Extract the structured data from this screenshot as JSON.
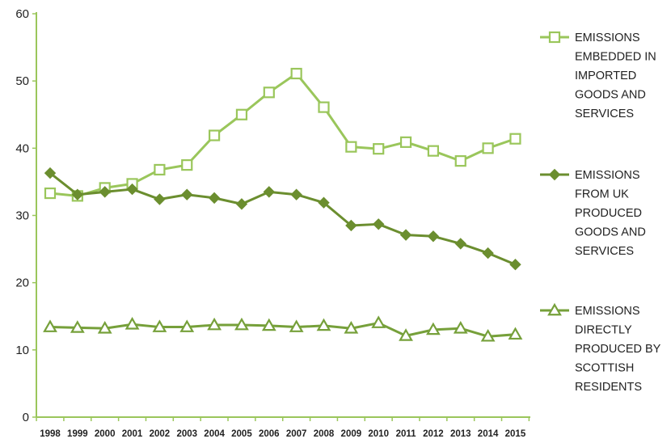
{
  "chart_data": {
    "type": "line",
    "title": "",
    "xlabel": "",
    "ylabel": "",
    "x": [
      "1998",
      "1999",
      "2000",
      "2001",
      "2002",
      "2003",
      "2004",
      "2005",
      "2006",
      "2007",
      "2008",
      "2009",
      "2010",
      "2011",
      "2012",
      "2013",
      "2014",
      "2015"
    ],
    "ylim": [
      0,
      60
    ],
    "yticks": [
      0,
      10,
      20,
      30,
      40,
      50,
      60
    ],
    "grid": false,
    "legend_position": "right",
    "series": [
      {
        "name": "EMISSIONS EMBEDDED IN IMPORTED GOODS AND SERVICES",
        "legend_lines": [
          "EMISSIONS",
          "EMBEDDED IN",
          "IMPORTED",
          "GOODS AND",
          "SERVICES"
        ],
        "marker": "square-open",
        "color": "#9ac65b",
        "values": [
          33.3,
          32.9,
          34.1,
          34.7,
          36.8,
          37.5,
          41.9,
          45.0,
          48.3,
          51.1,
          46.1,
          40.2,
          39.9,
          40.9,
          39.6,
          38.1,
          40.0,
          41.4
        ]
      },
      {
        "name": "EMISSIONS FROM UK PRODUCED GOODS AND SERVICES",
        "legend_lines": [
          "EMISSIONS",
          "FROM UK",
          "PRODUCED",
          "GOODS AND",
          "SERVICES"
        ],
        "marker": "diamond-filled",
        "color": "#6b8e2f",
        "values": [
          36.3,
          33.1,
          33.5,
          33.9,
          32.4,
          33.1,
          32.6,
          31.7,
          33.5,
          33.1,
          31.9,
          28.5,
          28.7,
          27.1,
          26.9,
          25.8,
          24.4,
          22.7
        ]
      },
      {
        "name": "EMISSIONS DIRECTLY PRODUCED BY SCOTTISH RESIDENTS",
        "legend_lines": [
          "EMISSIONS",
          "DIRECTLY",
          "PRODUCED BY",
          "SCOTTISH",
          "RESIDENTS"
        ],
        "marker": "triangle-open",
        "color": "#76a03a",
        "values": [
          13.4,
          13.3,
          13.2,
          13.8,
          13.4,
          13.4,
          13.7,
          13.7,
          13.6,
          13.4,
          13.6,
          13.2,
          14.0,
          12.1,
          13.0,
          13.2,
          12.0,
          12.3
        ]
      }
    ]
  }
}
